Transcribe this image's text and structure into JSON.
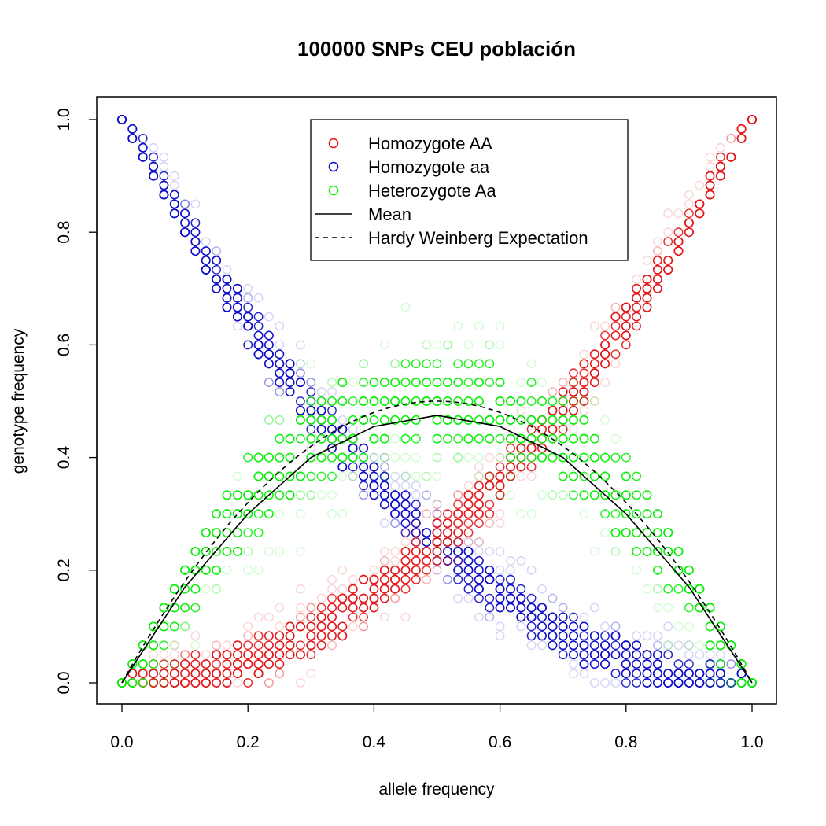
{
  "chart_data": {
    "type": "scatter",
    "title": "100000 SNPs CEU población",
    "xlabel": "allele frequency",
    "ylabel": "genotype frequency",
    "xlim": [
      0,
      1
    ],
    "ylim": [
      0,
      1
    ],
    "x_ticks": [
      "0.0",
      "0.2",
      "0.4",
      "0.6",
      "0.8",
      "1.0"
    ],
    "y_ticks": [
      "0.0",
      "0.2",
      "0.4",
      "0.6",
      "0.8",
      "1.0"
    ],
    "legend_position": "top-right",
    "series": [
      {
        "name": "Homozygote AA",
        "kind": "points",
        "color": "#e31a1c",
        "relation": "p^2 with sampling spread"
      },
      {
        "name": "Homozygote aa",
        "kind": "points",
        "color": "#1010c8",
        "relation": "(1-p)^2 with sampling spread"
      },
      {
        "name": "Heterozygote Aa",
        "kind": "points",
        "color": "#11ee11",
        "relation": "2p(1-p) with sampling spread"
      },
      {
        "name": "Mean",
        "kind": "line",
        "style": "solid",
        "color": "#000000",
        "points": [
          [
            0,
            0
          ],
          [
            0.1,
            0.17
          ],
          [
            0.2,
            0.3
          ],
          [
            0.3,
            0.4
          ],
          [
            0.4,
            0.455
          ],
          [
            0.5,
            0.475
          ],
          [
            0.6,
            0.455
          ],
          [
            0.7,
            0.4
          ],
          [
            0.8,
            0.3
          ],
          [
            0.9,
            0.17
          ],
          [
            1,
            0
          ]
        ]
      },
      {
        "name": "Hardy Weinberg Expectation",
        "kind": "line",
        "style": "dashed",
        "color": "#000000",
        "relation": "2p(1-p)"
      }
    ]
  }
}
